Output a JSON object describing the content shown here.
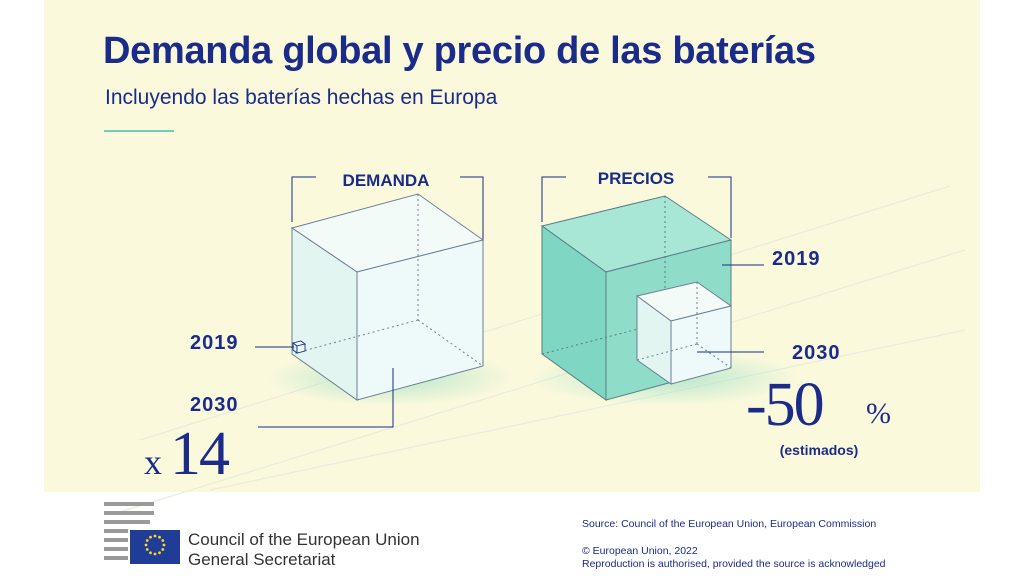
{
  "header": {
    "title": "Demanda global y precio de las baterías",
    "subtitle": "Incluyendo las baterías hechas en Europa"
  },
  "demand": {
    "label": "DEMANDA",
    "year_start": "2019",
    "year_end": "2030",
    "multiplier_prefix": "x",
    "multiplier_value": "14"
  },
  "prices": {
    "label": "PRECIOS",
    "year_start": "2019",
    "year_end": "2030",
    "change_value": "-50",
    "change_unit": "%",
    "note": "(estimados)"
  },
  "footer": {
    "org_name": "Council of the European Union",
    "org_sub": "General Secretariat",
    "source": "Source: Council of the European Union, European Commission",
    "copyright": "© European Union, 2022",
    "reproduction": "Reproduction is authorised, provided the source is acknowledged"
  },
  "colors": {
    "title": "#1a2b8a",
    "background": "#fbf9dc",
    "price_fill": "#8fdcc8",
    "cube_face": "#eef9f9"
  }
}
